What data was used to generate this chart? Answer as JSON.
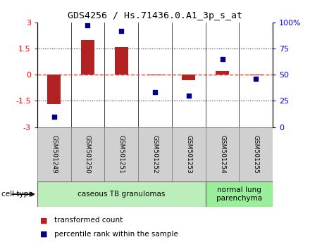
{
  "title": "GDS4256 / Hs.71436.0.A1_3p_s_at",
  "samples": [
    "GSM501249",
    "GSM501250",
    "GSM501251",
    "GSM501252",
    "GSM501253",
    "GSM501254",
    "GSM501255"
  ],
  "bar_values": [
    -1.7,
    2.0,
    1.6,
    -0.05,
    -0.3,
    0.2,
    -0.05
  ],
  "dot_values_pct": [
    10,
    97,
    92,
    33,
    30,
    65,
    46
  ],
  "ylim_left": [
    -3,
    3
  ],
  "ylim_right": [
    0,
    100
  ],
  "yticks_left": [
    -3,
    -1.5,
    0,
    1.5,
    3
  ],
  "ytick_labels_left": [
    "-3",
    "-1.5",
    "0",
    "1.5",
    "3"
  ],
  "yticks_right": [
    0,
    25,
    50,
    75,
    100
  ],
  "ytick_labels_right": [
    "0",
    "25",
    "50",
    "75",
    "100%"
  ],
  "bar_color": "#B22222",
  "dot_color": "#00008B",
  "zero_line_color": "#FF3333",
  "grid_line_color": "#000000",
  "cell_type_groups": [
    {
      "label": "caseous TB granulomas",
      "indices": [
        0,
        1,
        2,
        3,
        4
      ],
      "color": "#bbeebb"
    },
    {
      "label": "normal lung\nparenchyma",
      "indices": [
        5,
        6
      ],
      "color": "#99ee99"
    }
  ],
  "legend_bar_label": "transformed count",
  "legend_dot_label": "percentile rank within the sample",
  "cell_type_label": "cell type",
  "bg_color": "#ffffff",
  "sample_box_color": "#d0d0d0"
}
